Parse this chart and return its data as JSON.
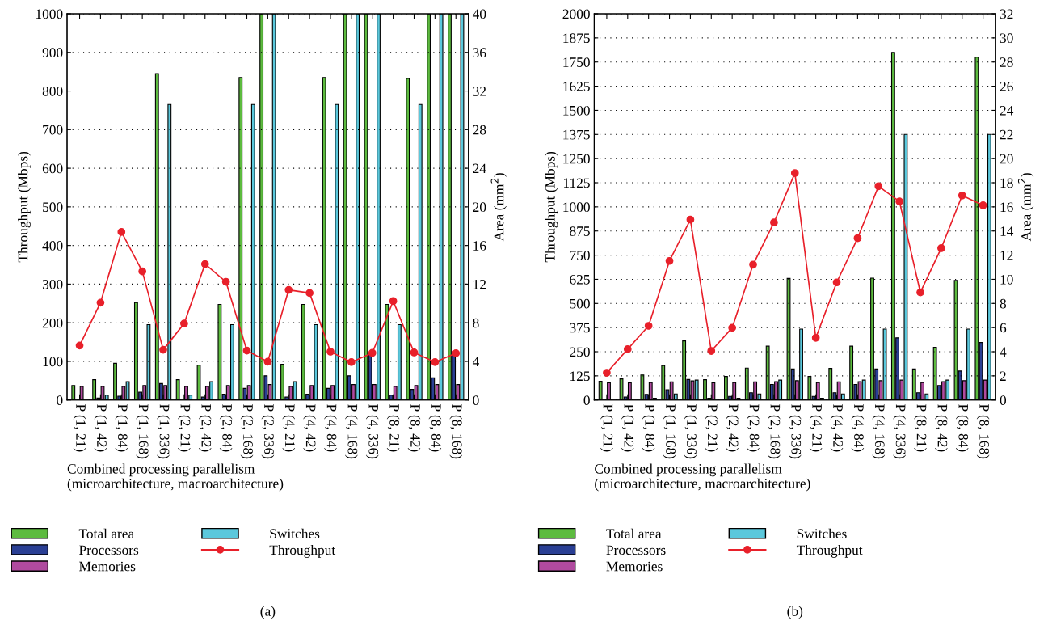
{
  "chart_data": [
    {
      "type": "bar",
      "categories": [
        "P (1, 21)",
        "P (1, 42)",
        "P (1, 84)",
        "P (1, 168)",
        "P (1, 336)",
        "P (2, 21)",
        "P (2, 42)",
        "P (2, 84)",
        "P (2, 168)",
        "P (2, 336)",
        "P (4, 21)",
        "P (4, 42)",
        "P (4, 84)",
        "P (4, 168)",
        "P (4, 336)",
        "P (8, 21)",
        "P (8, 42)",
        "P (8, 84)",
        "P (8, 168)"
      ],
      "xlabel": "Combined processing parallelism\n(microarchitecture, macroarchitecture)",
      "ylabel": "Throughput (Mbps)",
      "y2label": "Area (mm$^{2}$)",
      "ylim": [
        0,
        1000
      ],
      "yticks": [
        0,
        100,
        200,
        300,
        400,
        500,
        600,
        700,
        800,
        900,
        1000
      ],
      "y2lim": [
        0,
        40
      ],
      "y2ticks": [
        0,
        4,
        8,
        12,
        16,
        20,
        24,
        28,
        32,
        36,
        40
      ],
      "grid": "y",
      "legend": "bottom",
      "annotations": [
        "(a)"
      ],
      "series": [
        {
          "name": "Total area",
          "color": "#5dbb3f",
          "axis": "y2",
          "values": [
            1.5,
            2.1,
            3.8,
            10.1,
            33.8,
            2.1,
            3.6,
            9.9,
            33.4,
            40,
            3.7,
            9.9,
            33.4,
            40,
            40,
            9.9,
            33.3,
            40,
            40
          ]
        },
        {
          "name": "Processors",
          "color": "#2a3f94",
          "axis": "y2",
          "values": [
            null,
            0.2,
            0.4,
            0.8,
            1.7,
            null,
            0.3,
            0.6,
            1.2,
            2.5,
            0.3,
            0.6,
            1.2,
            2.5,
            4.8,
            0.5,
            1.1,
            2.3,
            4.8
          ]
        },
        {
          "name": "Memories",
          "color": "#b04a9f",
          "axis": "y2",
          "values": [
            1.4,
            1.4,
            1.4,
            1.5,
            1.5,
            1.4,
            1.4,
            1.5,
            1.5,
            1.6,
            1.4,
            1.5,
            1.5,
            1.6,
            1.6,
            1.4,
            1.5,
            1.6,
            1.6
          ]
        },
        {
          "name": "Switches",
          "color": "#5bc8dc",
          "axis": "y2",
          "values": [
            null,
            0.5,
            1.9,
            7.8,
            30.6,
            0.5,
            1.9,
            7.8,
            30.6,
            40,
            1.9,
            7.8,
            30.6,
            40,
            40,
            7.8,
            30.6,
            40,
            40
          ]
        },
        {
          "name": "Throughput",
          "color": "#e8202a",
          "type": "line",
          "axis": "y",
          "marker": "circle",
          "values": [
            141,
            252,
            435,
            333,
            130,
            198,
            352,
            306,
            128,
            99,
            285,
            277,
            125,
            98,
            122,
            256,
            123,
            98,
            121
          ]
        }
      ]
    },
    {
      "type": "bar",
      "categories": [
        "P (1, 21)",
        "P (1, 42)",
        "P (1, 84)",
        "P (1, 168)",
        "P (1, 336)",
        "P (2, 21)",
        "P (2, 42)",
        "P (2, 84)",
        "P (2, 168)",
        "P (2, 336)",
        "P (4, 21)",
        "P (4, 42)",
        "P (4, 84)",
        "P (4, 168)",
        "P (4, 336)",
        "P (8, 21)",
        "P (8, 42)",
        "P (8, 84)",
        "P (8, 168)"
      ],
      "xlabel": "Combined processing parallelism\n(microarchitecture, macroarchitecture)",
      "ylabel": "Throughput (Mbps)",
      "y2label": "Area (mm$^{2}$)",
      "ylim": [
        0,
        2000
      ],
      "yticks": [
        0,
        125,
        250,
        375,
        500,
        625,
        750,
        875,
        1000,
        1125,
        1250,
        1375,
        1500,
        1625,
        1750,
        1875,
        2000
      ],
      "y2lim": [
        0,
        32
      ],
      "y2ticks": [
        0,
        2,
        4,
        6,
        8,
        10,
        12,
        14,
        16,
        18,
        20,
        22,
        24,
        26,
        28,
        30,
        32
      ],
      "grid": "y",
      "legend": "bottom",
      "annotations": [
        "(b)"
      ],
      "series": [
        {
          "name": "Total area",
          "color": "#5dbb3f",
          "axis": "y2",
          "values": [
            1.56,
            1.75,
            2.07,
            2.85,
            4.9,
            1.68,
            1.95,
            2.64,
            4.46,
            10.07,
            1.95,
            2.62,
            4.46,
            10.1,
            28.8,
            2.57,
            4.37,
            9.9,
            28.4
          ]
        },
        {
          "name": "Processors",
          "color": "#2a3f94",
          "axis": "y2",
          "values": [
            null,
            0.25,
            0.46,
            0.85,
            1.7,
            0.15,
            0.3,
            0.6,
            1.29,
            2.57,
            0.3,
            0.6,
            1.29,
            2.57,
            5.15,
            0.6,
            1.2,
            2.4,
            4.76
          ]
        },
        {
          "name": "Memories",
          "color": "#b04a9f",
          "axis": "y2",
          "values": [
            1.43,
            1.43,
            1.45,
            1.5,
            1.58,
            1.43,
            1.45,
            1.5,
            1.52,
            1.6,
            1.45,
            1.5,
            1.52,
            1.6,
            1.65,
            1.45,
            1.52,
            1.6,
            1.65
          ]
        },
        {
          "name": "Switches",
          "color": "#5bc8dc",
          "axis": "y2",
          "values": [
            null,
            null,
            0.15,
            0.5,
            1.65,
            null,
            0.15,
            0.5,
            1.65,
            5.88,
            0.15,
            0.5,
            1.65,
            5.88,
            22,
            0.5,
            1.65,
            5.88,
            22
          ]
        },
        {
          "name": "Throughput",
          "color": "#e8202a",
          "type": "line",
          "axis": "y",
          "marker": "circle",
          "values": [
            141,
            263,
            384,
            720,
            934,
            254,
            374,
            701,
            919,
            1175,
            322,
            609,
            838,
            1107,
            1028,
            557,
            786,
            1059,
            1008
          ]
        }
      ]
    }
  ]
}
